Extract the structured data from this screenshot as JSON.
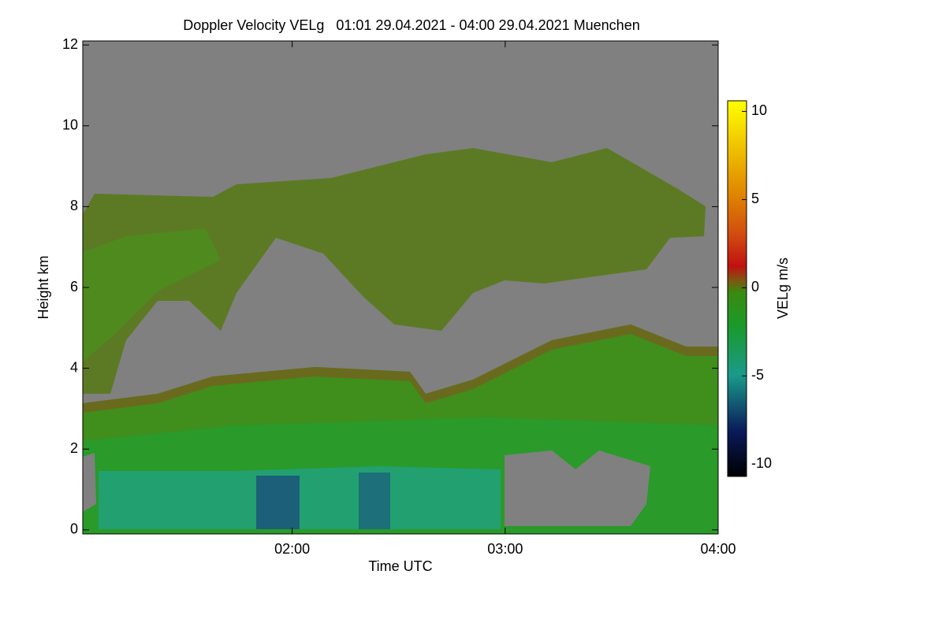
{
  "chart_data": {
    "type": "heatmap",
    "title": "Doppler Velocity VELg   01:01 29.04.2021 - 04:00 29.04.2021 Muenchen",
    "xlabel": "Time UTC",
    "ylabel": "Height km",
    "xlim": [
      1.0167,
      4.0
    ],
    "xticks": [
      {
        "value": 2,
        "label": "02:00"
      },
      {
        "value": 3,
        "label": "03:00"
      },
      {
        "value": 4,
        "label": "04:00"
      }
    ],
    "ylim": [
      -0.1,
      12.1
    ],
    "yticks": [
      0,
      2,
      4,
      6,
      8,
      10,
      12
    ],
    "colorbar": {
      "label": "VELg m/s",
      "lim": [
        -10.7,
        10.6
      ],
      "ticks": [
        -10,
        -5,
        0,
        5,
        10
      ]
    }
  }
}
